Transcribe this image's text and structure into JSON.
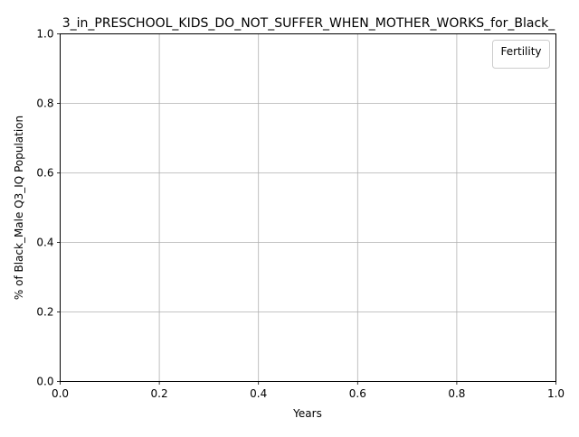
{
  "chart_data": {
    "type": "line",
    "title": "3_in_PRESCHOOL_KIDS_DO_NOT_SUFFER_WHEN_MOTHER_WORKS_for_Black_",
    "xlabel": "Years",
    "ylabel": "% of Black_Male Q3_IQ Population",
    "xlim": [
      0.0,
      1.0
    ],
    "ylim": [
      0.0,
      1.0
    ],
    "x_ticks": [
      "0.0",
      "0.2",
      "0.4",
      "0.6",
      "0.8",
      "1.0"
    ],
    "y_ticks": [
      "0.0",
      "0.2",
      "0.4",
      "0.6",
      "0.8",
      "1.0"
    ],
    "grid": true,
    "legend": {
      "title": "Fertility",
      "placement": "top-right",
      "entries": []
    },
    "series": []
  }
}
